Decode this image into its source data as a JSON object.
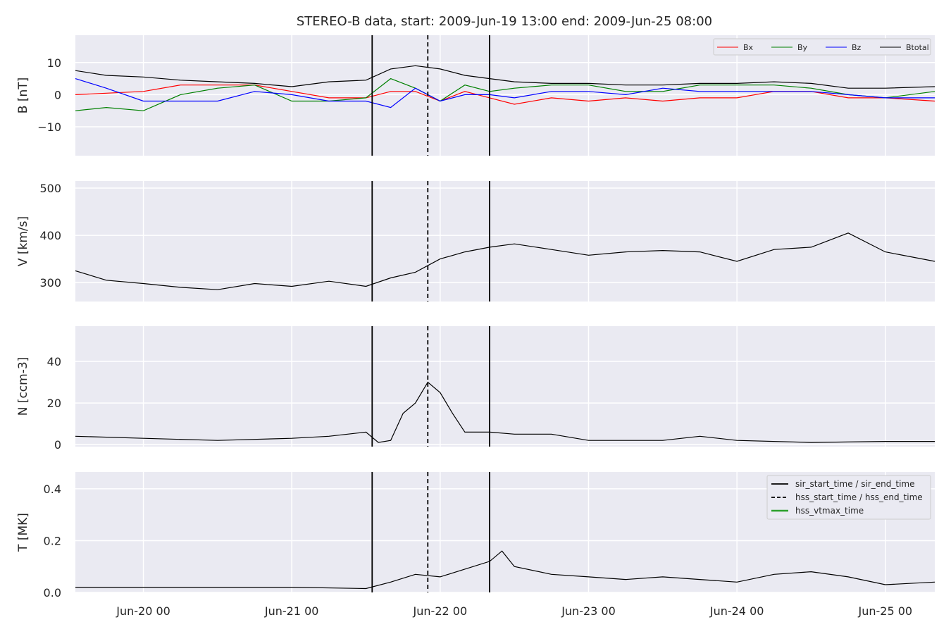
{
  "chart_data": {
    "type": "line",
    "title": "STEREO-B data, start: 2009-Jun-19 13:00  end: 2009-Jun-25 08:00",
    "x_range": [
      "2009-06-19 13:00",
      "2009-06-25 08:00"
    ],
    "x_ticks": [
      {
        "label": "Jun-20 00",
        "t": "2009-06-20 00:00"
      },
      {
        "label": "Jun-21 00",
        "t": "2009-06-21 00:00"
      },
      {
        "label": "Jun-22 00",
        "t": "2009-06-22 00:00"
      },
      {
        "label": "Jun-23 00",
        "t": "2009-06-23 00:00"
      },
      {
        "label": "Jun-24 00",
        "t": "2009-06-24 00:00"
      },
      {
        "label": "Jun-25 00",
        "t": "2009-06-25 00:00"
      }
    ],
    "grid": true,
    "event_markers": {
      "sir_start_time": "2009-06-21 13:00",
      "hss_start_time": "2009-06-21 22:00",
      "sir_end_time": "2009-06-22 08:00"
    },
    "panels": [
      {
        "id": "B",
        "ylabel": "B [nT]",
        "ylim": [
          -19,
          18.5
        ],
        "yticks": [
          -10,
          0,
          10
        ],
        "legend_position": "top-right",
        "series": [
          {
            "name": "Bx",
            "color": "#ff0000",
            "points": [
              [
                "2009-06-19 13:00",
                0
              ],
              [
                "2009-06-20 00:00",
                1
              ],
              [
                "2009-06-20 06:00",
                3
              ],
              [
                "2009-06-20 12:00",
                3
              ],
              [
                "2009-06-20 18:00",
                3
              ],
              [
                "2009-06-21 00:00",
                1
              ],
              [
                "2009-06-21 06:00",
                -1
              ],
              [
                "2009-06-21 12:00",
                -1
              ],
              [
                "2009-06-21 16:00",
                1
              ],
              [
                "2009-06-21 20:00",
                1
              ],
              [
                "2009-06-22 00:00",
                -2
              ],
              [
                "2009-06-22 04:00",
                1
              ],
              [
                "2009-06-22 08:00",
                -1
              ],
              [
                "2009-06-22 12:00",
                -3
              ],
              [
                "2009-06-22 18:00",
                -1
              ],
              [
                "2009-06-23 00:00",
                -2
              ],
              [
                "2009-06-23 06:00",
                -1
              ],
              [
                "2009-06-23 12:00",
                -2
              ],
              [
                "2009-06-23 18:00",
                -1
              ],
              [
                "2009-06-24 00:00",
                -1
              ],
              [
                "2009-06-24 06:00",
                1
              ],
              [
                "2009-06-24 12:00",
                1
              ],
              [
                "2009-06-24 18:00",
                -1
              ],
              [
                "2009-06-25 00:00",
                -1
              ],
              [
                "2009-06-25 08:00",
                -2
              ]
            ]
          },
          {
            "name": "By",
            "color": "#008000",
            "points": [
              [
                "2009-06-19 13:00",
                -5
              ],
              [
                "2009-06-19 18:00",
                -4
              ],
              [
                "2009-06-20 00:00",
                -5
              ],
              [
                "2009-06-20 06:00",
                0
              ],
              [
                "2009-06-20 12:00",
                2
              ],
              [
                "2009-06-20 18:00",
                3
              ],
              [
                "2009-06-21 00:00",
                -2
              ],
              [
                "2009-06-21 06:00",
                -2
              ],
              [
                "2009-06-21 12:00",
                -1
              ],
              [
                "2009-06-21 16:00",
                5
              ],
              [
                "2009-06-21 20:00",
                2
              ],
              [
                "2009-06-22 00:00",
                -2
              ],
              [
                "2009-06-22 04:00",
                3
              ],
              [
                "2009-06-22 08:00",
                1
              ],
              [
                "2009-06-22 12:00",
                2
              ],
              [
                "2009-06-22 18:00",
                3
              ],
              [
                "2009-06-23 00:00",
                3
              ],
              [
                "2009-06-23 06:00",
                1
              ],
              [
                "2009-06-23 12:00",
                1
              ],
              [
                "2009-06-23 18:00",
                3
              ],
              [
                "2009-06-24 00:00",
                3
              ],
              [
                "2009-06-24 06:00",
                3
              ],
              [
                "2009-06-24 12:00",
                2
              ],
              [
                "2009-06-24 18:00",
                0
              ],
              [
                "2009-06-25 00:00",
                -1
              ],
              [
                "2009-06-25 08:00",
                1
              ]
            ]
          },
          {
            "name": "Bz",
            "color": "#0000ff",
            "points": [
              [
                "2009-06-19 13:00",
                5
              ],
              [
                "2009-06-19 18:00",
                2
              ],
              [
                "2009-06-20 00:00",
                -2
              ],
              [
                "2009-06-20 06:00",
                -2
              ],
              [
                "2009-06-20 12:00",
                -2
              ],
              [
                "2009-06-20 18:00",
                1
              ],
              [
                "2009-06-21 00:00",
                0
              ],
              [
                "2009-06-21 06:00",
                -2
              ],
              [
                "2009-06-21 12:00",
                -2
              ],
              [
                "2009-06-21 16:00",
                -4
              ],
              [
                "2009-06-21 20:00",
                2
              ],
              [
                "2009-06-22 00:00",
                -2
              ],
              [
                "2009-06-22 04:00",
                0
              ],
              [
                "2009-06-22 08:00",
                0
              ],
              [
                "2009-06-22 12:00",
                -1
              ],
              [
                "2009-06-22 18:00",
                1
              ],
              [
                "2009-06-23 00:00",
                1
              ],
              [
                "2009-06-23 06:00",
                0
              ],
              [
                "2009-06-23 12:00",
                2
              ],
              [
                "2009-06-23 18:00",
                1
              ],
              [
                "2009-06-24 00:00",
                1
              ],
              [
                "2009-06-24 06:00",
                1
              ],
              [
                "2009-06-24 12:00",
                1
              ],
              [
                "2009-06-24 18:00",
                0
              ],
              [
                "2009-06-25 00:00",
                -1
              ],
              [
                "2009-06-25 08:00",
                -1
              ]
            ]
          },
          {
            "name": "Btotal",
            "color": "#000000",
            "points": [
              [
                "2009-06-19 13:00",
                7.5
              ],
              [
                "2009-06-19 18:00",
                6
              ],
              [
                "2009-06-20 00:00",
                5.5
              ],
              [
                "2009-06-20 06:00",
                4.5
              ],
              [
                "2009-06-20 12:00",
                4
              ],
              [
                "2009-06-20 18:00",
                3.5
              ],
              [
                "2009-06-21 00:00",
                2.5
              ],
              [
                "2009-06-21 06:00",
                4
              ],
              [
                "2009-06-21 12:00",
                4.5
              ],
              [
                "2009-06-21 16:00",
                8
              ],
              [
                "2009-06-21 20:00",
                9
              ],
              [
                "2009-06-22 00:00",
                8
              ],
              [
                "2009-06-22 04:00",
                6
              ],
              [
                "2009-06-22 08:00",
                5
              ],
              [
                "2009-06-22 12:00",
                4
              ],
              [
                "2009-06-22 18:00",
                3.5
              ],
              [
                "2009-06-23 00:00",
                3.5
              ],
              [
                "2009-06-23 06:00",
                3
              ],
              [
                "2009-06-23 12:00",
                3
              ],
              [
                "2009-06-23 18:00",
                3.5
              ],
              [
                "2009-06-24 00:00",
                3.5
              ],
              [
                "2009-06-24 06:00",
                4
              ],
              [
                "2009-06-24 12:00",
                3.5
              ],
              [
                "2009-06-24 18:00",
                2
              ],
              [
                "2009-06-25 00:00",
                2
              ],
              [
                "2009-06-25 08:00",
                2.5
              ]
            ]
          }
        ]
      },
      {
        "id": "V",
        "ylabel": "V [km/s]",
        "ylim": [
          260,
          515
        ],
        "yticks": [
          300,
          400,
          500
        ],
        "series": [
          {
            "name": "",
            "color": "#000000",
            "points": [
              [
                "2009-06-19 13:00",
                325
              ],
              [
                "2009-06-19 18:00",
                305
              ],
              [
                "2009-06-20 00:00",
                298
              ],
              [
                "2009-06-20 06:00",
                290
              ],
              [
                "2009-06-20 12:00",
                285
              ],
              [
                "2009-06-20 18:00",
                298
              ],
              [
                "2009-06-21 00:00",
                292
              ],
              [
                "2009-06-21 06:00",
                303
              ],
              [
                "2009-06-21 12:00",
                292
              ],
              [
                "2009-06-21 16:00",
                310
              ],
              [
                "2009-06-21 20:00",
                322
              ],
              [
                "2009-06-22 00:00",
                350
              ],
              [
                "2009-06-22 04:00",
                365
              ],
              [
                "2009-06-22 08:00",
                375
              ],
              [
                "2009-06-22 12:00",
                382
              ],
              [
                "2009-06-22 18:00",
                370
              ],
              [
                "2009-06-23 00:00",
                358
              ],
              [
                "2009-06-23 06:00",
                365
              ],
              [
                "2009-06-23 12:00",
                368
              ],
              [
                "2009-06-23 18:00",
                365
              ],
              [
                "2009-06-24 00:00",
                345
              ],
              [
                "2009-06-24 06:00",
                370
              ],
              [
                "2009-06-24 12:00",
                375
              ],
              [
                "2009-06-24 18:00",
                405
              ],
              [
                "2009-06-25 00:00",
                365
              ],
              [
                "2009-06-25 08:00",
                345
              ]
            ]
          }
        ]
      },
      {
        "id": "N",
        "ylabel": "N [ccm-3]",
        "ylim": [
          -1,
          57
        ],
        "yticks": [
          0,
          20,
          40
        ],
        "series": [
          {
            "name": "",
            "color": "#000000",
            "points": [
              [
                "2009-06-19 13:00",
                4
              ],
              [
                "2009-06-20 00:00",
                3
              ],
              [
                "2009-06-20 12:00",
                2
              ],
              [
                "2009-06-21 00:00",
                3
              ],
              [
                "2009-06-21 06:00",
                4
              ],
              [
                "2009-06-21 12:00",
                6
              ],
              [
                "2009-06-21 14:00",
                1
              ],
              [
                "2009-06-21 16:00",
                2
              ],
              [
                "2009-06-21 18:00",
                15
              ],
              [
                "2009-06-21 20:00",
                20
              ],
              [
                "2009-06-21 22:00",
                30
              ],
              [
                "2009-06-22 00:00",
                25
              ],
              [
                "2009-06-22 02:00",
                15
              ],
              [
                "2009-06-22 04:00",
                6
              ],
              [
                "2009-06-22 08:00",
                6
              ],
              [
                "2009-06-22 12:00",
                5
              ],
              [
                "2009-06-22 18:00",
                5
              ],
              [
                "2009-06-23 00:00",
                2
              ],
              [
                "2009-06-23 06:00",
                2
              ],
              [
                "2009-06-23 12:00",
                2
              ],
              [
                "2009-06-23 18:00",
                4
              ],
              [
                "2009-06-24 00:00",
                2
              ],
              [
                "2009-06-24 12:00",
                1
              ],
              [
                "2009-06-25 00:00",
                1.5
              ],
              [
                "2009-06-25 08:00",
                1.5
              ]
            ]
          }
        ]
      },
      {
        "id": "T",
        "ylabel": "T [MK]",
        "ylim": [
          0,
          0.465
        ],
        "yticks": [
          0.0,
          0.2,
          0.4
        ],
        "legend_position": "top-right",
        "series": [
          {
            "name": "",
            "color": "#000000",
            "points": [
              [
                "2009-06-19 13:00",
                0.02
              ],
              [
                "2009-06-20 00:00",
                0.02
              ],
              [
                "2009-06-20 12:00",
                0.02
              ],
              [
                "2009-06-21 00:00",
                0.02
              ],
              [
                "2009-06-21 12:00",
                0.015
              ],
              [
                "2009-06-21 16:00",
                0.04
              ],
              [
                "2009-06-21 20:00",
                0.07
              ],
              [
                "2009-06-22 00:00",
                0.06
              ],
              [
                "2009-06-22 04:00",
                0.09
              ],
              [
                "2009-06-22 08:00",
                0.12
              ],
              [
                "2009-06-22 10:00",
                0.16
              ],
              [
                "2009-06-22 12:00",
                0.1
              ],
              [
                "2009-06-22 18:00",
                0.07
              ],
              [
                "2009-06-23 00:00",
                0.06
              ],
              [
                "2009-06-23 06:00",
                0.05
              ],
              [
                "2009-06-23 12:00",
                0.06
              ],
              [
                "2009-06-23 18:00",
                0.05
              ],
              [
                "2009-06-24 00:00",
                0.04
              ],
              [
                "2009-06-24 06:00",
                0.07
              ],
              [
                "2009-06-24 12:00",
                0.08
              ],
              [
                "2009-06-24 18:00",
                0.06
              ],
              [
                "2009-06-25 00:00",
                0.03
              ],
              [
                "2009-06-25 08:00",
                0.04
              ]
            ]
          }
        ],
        "marker_legend": [
          {
            "label": "sir_start_time / sir_end_time",
            "style": "solid",
            "color": "#000000"
          },
          {
            "label": "hss_start_time / hss_end_time",
            "style": "dashed",
            "color": "#000000"
          },
          {
            "label": "hss_vtmax_time",
            "style": "solid",
            "color": "#2ca02c"
          }
        ]
      }
    ]
  }
}
